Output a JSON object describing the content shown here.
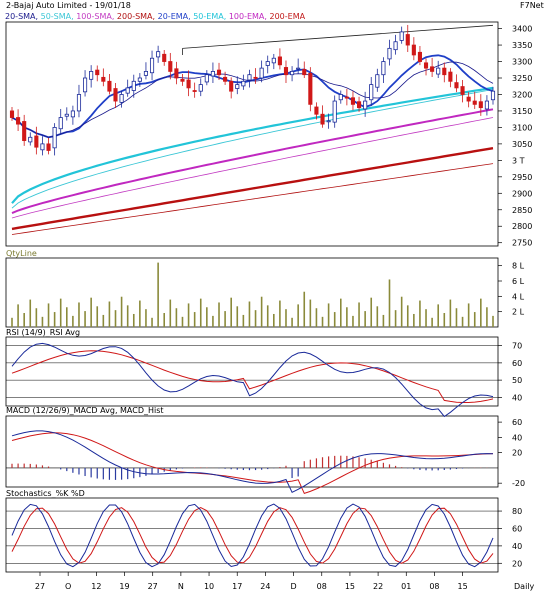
{
  "header": {
    "title": "2-Bajaj Auto Limited - 19/01/18",
    "brand": "F7Net",
    "indicators": [
      {
        "label": "20-SMA",
        "color": "#1a1a8c"
      },
      {
        "label": "50-SMA",
        "color": "#3cc7d6"
      },
      {
        "label": "100-SMA",
        "color": "#c23bc2"
      },
      {
        "label": "200-SMA",
        "color": "#b01010"
      },
      {
        "label": "20-EMA",
        "color": "#1f3fc8"
      },
      {
        "label": "50-EMA",
        "color": "#22c4d8"
      },
      {
        "label": "100-EMA",
        "color": "#c028c0"
      },
      {
        "label": "200-EMA",
        "color": "#c01818"
      }
    ]
  },
  "panels": {
    "qty_title": "QtyLine",
    "rsi_title": "RSI (14/9)_RSI Avg",
    "macd_title": "MACD (12/26/9)_MACD Avg, MACD_Hist",
    "stoch_title": "Stochastics_%K %D"
  },
  "x_axis": {
    "labels": [
      "27",
      "O",
      "12",
      "19",
      "27",
      "N",
      "10",
      "17",
      "24",
      "D",
      "08",
      "15",
      "22",
      "01",
      "08",
      "15"
    ],
    "period": "Daily"
  },
  "chart_data": [
    {
      "type": "candlestick",
      "title": "2-Bajaj Auto Limited - 19/01/18",
      "ylim": [
        2740,
        3420
      ],
      "y_ticks": [
        "3400",
        "3350",
        "3300",
        "3250",
        "3200",
        "3150",
        "3100",
        "3050",
        "3 T",
        "2950",
        "2900",
        "2850",
        "2800",
        "2750"
      ],
      "closes": [
        3130,
        3110,
        3060,
        3070,
        3040,
        3050,
        3030,
        3100,
        3130,
        3140,
        3150,
        3200,
        3250,
        3270,
        3260,
        3240,
        3210,
        3180,
        3200,
        3220,
        3240,
        3250,
        3270,
        3310,
        3330,
        3300,
        3270,
        3250,
        3240,
        3220,
        3210,
        3230,
        3260,
        3270,
        3260,
        3240,
        3210,
        3230,
        3240,
        3260,
        3250,
        3280,
        3300,
        3310,
        3290,
        3260,
        3270,
        3280,
        3260,
        3170,
        3140,
        3110,
        3120,
        3180,
        3200,
        3190,
        3170,
        3160,
        3180,
        3230,
        3260,
        3300,
        3340,
        3360,
        3390,
        3350,
        3320,
        3300,
        3280,
        3270,
        3280,
        3260,
        3240,
        3220,
        3200,
        3180,
        3170,
        3160,
        3180,
        3210
      ],
      "volume": {
        "ylim": [
          0,
          9
        ],
        "y_ticks": [
          "8 L",
          "6 L",
          "4 L",
          "2 L"
        ]
      },
      "rsi": {
        "ylim": [
          35,
          75
        ],
        "y_ticks": [
          "70",
          "60",
          "50",
          "40"
        ]
      },
      "macd": {
        "ylim": [
          -25,
          68
        ],
        "y_ticks": [
          "60",
          "40",
          "20",
          "-20"
        ]
      },
      "stochastics": {
        "ylim": [
          10,
          95
        ],
        "y_ticks": [
          "80",
          "60",
          "40",
          "20"
        ]
      }
    }
  ]
}
